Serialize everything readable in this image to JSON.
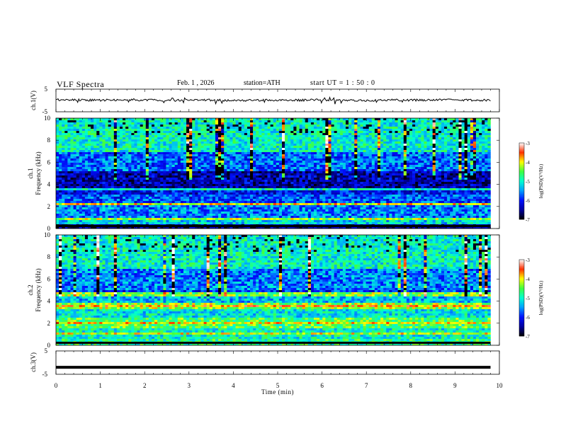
{
  "header": {
    "title": "VLF  Spectra",
    "date": "Feb. 1 , 2026",
    "station": "station=ATH",
    "start_ut": "start  UT  =   1 : 50 : 0"
  },
  "colors": {
    "trace": "#000000",
    "colormap": [
      "#000000",
      "#0000a0",
      "#0010ff",
      "#00a0ff",
      "#00ffd0",
      "#40ff40",
      "#ffff00",
      "#ff3000",
      "#ffffff"
    ]
  },
  "chart_data": [
    {
      "type": "line",
      "name": "ch1-waveform",
      "ylabel": "ch.1(V)",
      "ylim": [
        -5,
        5
      ],
      "yticks": [
        "5",
        "-5"
      ],
      "xlim": [
        0,
        10
      ],
      "x": [
        0,
        0.5,
        1,
        1.5,
        2,
        2.5,
        3,
        3.5,
        4,
        4.5,
        5,
        5.5,
        6,
        6.5,
        7,
        7.5,
        8,
        8.5,
        9,
        9.5,
        9.8
      ],
      "y": [
        0.3,
        0.2,
        0.1,
        0.3,
        0.2,
        0.0,
        0.1,
        0.2,
        0.0,
        0.1,
        0.2,
        0.1,
        0.3,
        0.2,
        0.0,
        0.2,
        0.1,
        0.2,
        0.3,
        0.1,
        0.2
      ]
    },
    {
      "type": "heatmap",
      "name": "ch1-spectrogram",
      "ylabel": "ch.1",
      "ylabel2": "Frequency (kHz)",
      "ylim": [
        0,
        10
      ],
      "yticks": [
        "0",
        "2",
        "4",
        "6",
        "8",
        "10"
      ],
      "xlim": [
        0,
        9.8
      ],
      "bands": [
        {
          "from": 0.0,
          "to": 0.4,
          "level": -6.5
        },
        {
          "from": 0.4,
          "to": 1.0,
          "level": -5.2
        },
        {
          "from": 1.0,
          "to": 2.2,
          "level": -5.6
        },
        {
          "from": 2.2,
          "to": 3.0,
          "level": -5.8
        },
        {
          "from": 3.0,
          "to": 3.5,
          "level": -6.1
        },
        {
          "from": 3.5,
          "to": 5.2,
          "level": -6.4
        },
        {
          "from": 5.2,
          "to": 7.0,
          "level": -5.7
        },
        {
          "from": 7.0,
          "to": 10.0,
          "level": -5.0
        }
      ],
      "lines": [
        {
          "f": 2.2,
          "level": -4.0
        },
        {
          "f": 0.8,
          "level": -4.3
        },
        {
          "f": 3.6,
          "level": -5.0
        }
      ],
      "colorbar": {
        "label": "log(PSD)(V²/Hz)",
        "range": [
          -7,
          -3
        ],
        "ticks": [
          "-3",
          "-4",
          "-5",
          "-6",
          "-7"
        ]
      }
    },
    {
      "type": "heatmap",
      "name": "ch2-spectrogram",
      "ylabel": "ch.2",
      "ylabel2": "Frequency (kHz)",
      "ylim": [
        0,
        10
      ],
      "yticks": [
        "0",
        "2",
        "4",
        "6",
        "8",
        "10"
      ],
      "xlim": [
        0,
        9.8
      ],
      "bands": [
        {
          "from": 0.0,
          "to": 0.6,
          "level": -4.8
        },
        {
          "from": 0.6,
          "to": 1.5,
          "level": -5.0
        },
        {
          "from": 1.5,
          "to": 2.5,
          "level": -4.6
        },
        {
          "from": 2.5,
          "to": 3.3,
          "level": -5.1
        },
        {
          "from": 3.3,
          "to": 3.9,
          "level": -4.3
        },
        {
          "from": 3.9,
          "to": 4.4,
          "level": -5.3
        },
        {
          "from": 4.4,
          "to": 5.0,
          "level": -5.9
        },
        {
          "from": 5.0,
          "to": 7.0,
          "level": -5.6
        },
        {
          "from": 7.0,
          "to": 10.0,
          "level": -5.0
        }
      ],
      "lines": [
        {
          "f": 3.6,
          "level": -3.8
        },
        {
          "f": 2.0,
          "level": -4.0
        },
        {
          "f": 1.0,
          "level": -4.2
        },
        {
          "f": 4.6,
          "level": -4.4
        }
      ],
      "colorbar": {
        "label": "log(PSD)(V²/Hz)",
        "range": [
          -7,
          -3
        ],
        "ticks": [
          "-3",
          "-4",
          "-5",
          "-6",
          "-7"
        ]
      }
    },
    {
      "type": "line",
      "name": "ch3-waveform",
      "ylabel": "ch.3(V)",
      "ylim": [
        -5,
        5
      ],
      "yticks": [
        "5",
        "-5"
      ],
      "xlim": [
        0,
        10
      ],
      "x": [
        0,
        9.8
      ],
      "y": [
        -2,
        -2
      ]
    }
  ],
  "xaxis": {
    "label": "Time (min)",
    "range": [
      0,
      10
    ],
    "ticks": [
      "0",
      "1",
      "2",
      "3",
      "4",
      "5",
      "6",
      "7",
      "8",
      "9",
      "10"
    ]
  }
}
